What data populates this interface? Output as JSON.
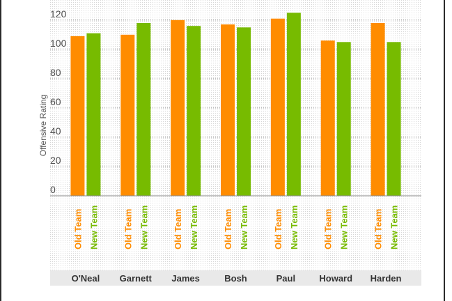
{
  "chart_data": {
    "type": "bar",
    "title": "",
    "xlabel": "",
    "ylabel": "Offensive Rating",
    "ylim": [
      0,
      128
    ],
    "yticks": [
      0,
      20,
      40,
      60,
      80,
      100,
      120
    ],
    "categories": [
      "O'Neal",
      "Garnett",
      "James",
      "Bosh",
      "Paul",
      "Howard",
      "Harden"
    ],
    "series": [
      {
        "name": "Old Team",
        "color": "#ff8c00",
        "values": [
          109,
          110,
          120,
          117,
          121,
          106,
          118
        ]
      },
      {
        "name": "New Team",
        "color": "#77bb00",
        "values": [
          111,
          118,
          116,
          115,
          125,
          105,
          105
        ]
      }
    ],
    "grid": true,
    "background": "dotted",
    "category_band_color": "#e9e9e9"
  }
}
